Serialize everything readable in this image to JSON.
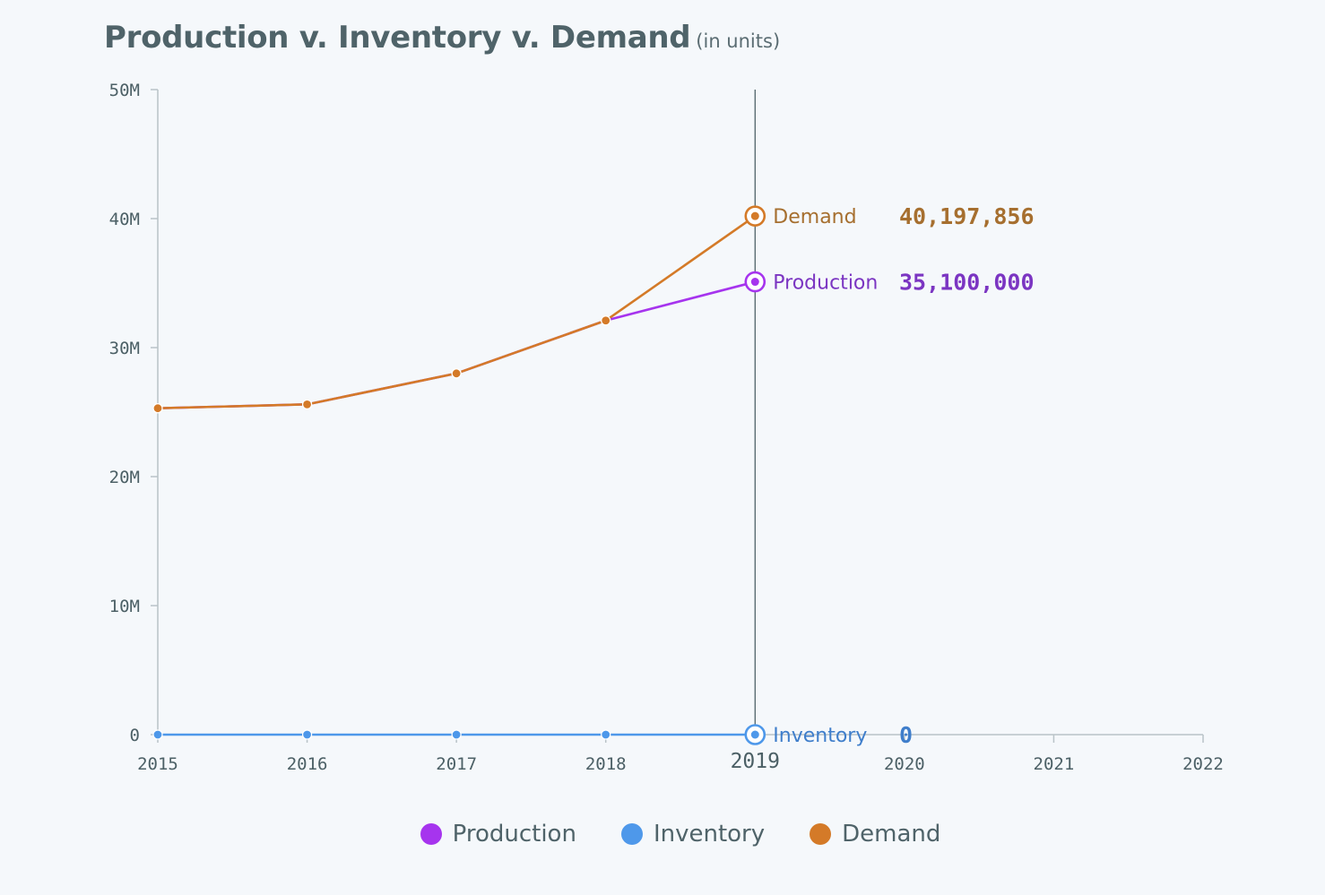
{
  "header": {
    "title": "Production v. Inventory v. Demand",
    "subtitle": "(in units)"
  },
  "chart_data": {
    "type": "line",
    "title": "Production v. Inventory v. Demand",
    "subtitle": "(in units)",
    "x": [
      2015,
      2016,
      2017,
      2018,
      2019
    ],
    "x_ticks": [
      "2015",
      "2016",
      "2017",
      "2018",
      "2019",
      "2020",
      "2021",
      "2022"
    ],
    "xlim": [
      2015,
      2022
    ],
    "y_ticks": [
      "0",
      "10M",
      "20M",
      "30M",
      "40M",
      "50M"
    ],
    "ylim": [
      0,
      50000000
    ],
    "highlight_x": 2019,
    "legend_position": "bottom",
    "series": [
      {
        "name": "Production",
        "color": "#a634ee",
        "values": [
          25300000,
          25600000,
          28000000,
          32100000,
          35100000
        ],
        "end_value": "35,100,000",
        "value_color": "#7b35c2"
      },
      {
        "name": "Inventory",
        "color": "#4e98ea",
        "values": [
          0,
          0,
          0,
          0,
          0
        ],
        "end_value": "0",
        "value_color": "#3f7ecb"
      },
      {
        "name": "Demand",
        "color": "#d47a28",
        "values": [
          25300000,
          25600000,
          28000000,
          32100000,
          40197856
        ],
        "end_value": "40,197,856",
        "value_color": "#a66f2f"
      }
    ]
  },
  "legend": {
    "items": [
      {
        "label": "Production",
        "color": "#a634ee"
      },
      {
        "label": "Inventory",
        "color": "#4e98ea"
      },
      {
        "label": "Demand",
        "color": "#d47a28"
      }
    ]
  }
}
